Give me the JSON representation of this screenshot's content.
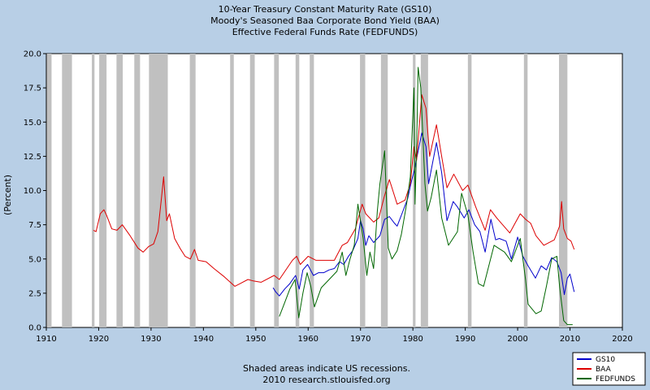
{
  "chart_data": {
    "type": "line",
    "title_lines": [
      "10-Year Treasury Constant Maturity Rate (GS10)",
      "Moody's Seasoned Baa Corporate Bond Yield (BAA)",
      "Effective Federal Funds Rate (FEDFUNDS)"
    ],
    "ylabel": "(Percent)",
    "xlabel": "",
    "xlim": [
      1910,
      2020
    ],
    "ylim": [
      0,
      20
    ],
    "x_ticks": [
      1910,
      1920,
      1930,
      1940,
      1950,
      1960,
      1970,
      1980,
      1990,
      2000,
      2010,
      2020
    ],
    "y_ticks": [
      "0.0",
      "2.5",
      "5.0",
      "7.5",
      "10.0",
      "12.5",
      "15.0",
      "17.5",
      "20.0"
    ],
    "grid": false,
    "legend_position": "bottom-right",
    "recessions": [
      [
        1910.1,
        1911.0
      ],
      [
        1913.0,
        1914.9
      ],
      [
        1918.7,
        1919.2
      ],
      [
        1920.1,
        1921.5
      ],
      [
        1923.4,
        1924.6
      ],
      [
        1926.8,
        1927.9
      ],
      [
        1929.6,
        1933.2
      ],
      [
        1937.4,
        1938.5
      ],
      [
        1945.1,
        1945.8
      ],
      [
        1948.9,
        1949.8
      ],
      [
        1953.5,
        1954.4
      ],
      [
        1957.6,
        1958.3
      ],
      [
        1960.3,
        1961.1
      ],
      [
        1969.9,
        1970.9
      ],
      [
        1973.9,
        1975.2
      ],
      [
        1980.0,
        1980.5
      ],
      [
        1981.5,
        1982.9
      ],
      [
        1990.5,
        1991.2
      ],
      [
        2001.2,
        2001.9
      ],
      [
        2007.9,
        2009.5
      ]
    ],
    "series": [
      {
        "name": "GS10",
        "color": "#0000cc",
        "x": [
          1953.3,
          1953.8,
          1954.5,
          1955.5,
          1956.5,
          1957.6,
          1958.3,
          1959.0,
          1959.9,
          1961.0,
          1962.0,
          1963.0,
          1964.0,
          1965.0,
          1966.0,
          1966.8,
          1967.7,
          1968.5,
          1969.5,
          1970.0,
          1970.5,
          1971.0,
          1971.6,
          1972.5,
          1973.7,
          1974.6,
          1975.5,
          1976.5,
          1977.0,
          1978.0,
          1979.0,
          1979.8,
          1980.3,
          1980.9,
          1981.7,
          1982.5,
          1983.0,
          1984.5,
          1985.5,
          1986.5,
          1987.7,
          1988.5,
          1989.8,
          1990.7,
          1991.8,
          1992.8,
          1993.8,
          1994.9,
          1995.8,
          1996.5,
          1997.8,
          1998.8,
          2000.0,
          2001.0,
          2002.0,
          2003.4,
          2004.5,
          2005.5,
          2006.5,
          2007.5,
          2008.3,
          2008.9,
          2009.5,
          2010.0,
          2010.8
        ],
        "y": [
          2.9,
          2.6,
          2.3,
          2.8,
          3.2,
          3.8,
          2.8,
          4.2,
          4.6,
          3.8,
          4.0,
          4.0,
          4.2,
          4.3,
          4.8,
          4.6,
          5.2,
          5.6,
          6.5,
          7.8,
          7.2,
          6.0,
          6.7,
          6.2,
          6.7,
          7.9,
          8.1,
          7.6,
          7.4,
          8.4,
          9.4,
          10.8,
          11.5,
          12.7,
          14.2,
          13.2,
          10.5,
          13.5,
          11.3,
          7.8,
          9.2,
          8.8,
          8.0,
          8.6,
          7.5,
          7.0,
          5.5,
          7.9,
          6.4,
          6.5,
          6.3,
          5.0,
          6.6,
          5.2,
          4.5,
          3.6,
          4.5,
          4.2,
          5.1,
          4.8,
          4.0,
          2.4,
          3.6,
          3.9,
          2.6
        ]
      },
      {
        "name": "BAA",
        "color": "#dd0000",
        "x": [
          1919.0,
          1919.5,
          1920.3,
          1921.0,
          1921.5,
          1922.5,
          1923.5,
          1924.5,
          1926.0,
          1927.5,
          1928.5,
          1929.5,
          1930.5,
          1931.3,
          1932.0,
          1932.4,
          1933.0,
          1933.5,
          1934.5,
          1935.5,
          1936.5,
          1937.5,
          1938.3,
          1939.0,
          1940.5,
          1942.0,
          1944.0,
          1946.0,
          1947.0,
          1948.5,
          1949.5,
          1951.0,
          1953.5,
          1954.5,
          1957.0,
          1957.8,
          1958.5,
          1960.0,
          1961.5,
          1963.5,
          1965.0,
          1966.5,
          1967.5,
          1969.0,
          1970.3,
          1971.0,
          1972.5,
          1973.5,
          1974.5,
          1975.5,
          1977.0,
          1978.5,
          1979.5,
          1980.2,
          1980.7,
          1981.7,
          1982.5,
          1983.2,
          1984.5,
          1985.5,
          1986.5,
          1987.8,
          1989.5,
          1990.5,
          1992.0,
          1993.8,
          1994.8,
          1996.0,
          1998.5,
          2000.5,
          2001.5,
          2002.5,
          2003.5,
          2005.0,
          2007.0,
          2008.0,
          2008.4,
          2008.8,
          2009.5,
          2010.2,
          2010.8
        ],
        "y": [
          7.1,
          7.0,
          8.3,
          8.6,
          8.2,
          7.2,
          7.1,
          7.5,
          6.7,
          5.8,
          5.5,
          5.9,
          6.1,
          7.0,
          9.5,
          11.0,
          7.8,
          8.3,
          6.5,
          5.8,
          5.2,
          5.0,
          5.7,
          4.9,
          4.8,
          4.3,
          3.7,
          3.0,
          3.2,
          3.5,
          3.4,
          3.3,
          3.8,
          3.5,
          4.9,
          5.2,
          4.6,
          5.2,
          4.9,
          4.9,
          4.9,
          6.0,
          6.2,
          7.2,
          9.0,
          8.3,
          7.7,
          8.0,
          9.5,
          10.8,
          9.0,
          9.3,
          10.5,
          13.2,
          12.2,
          17.0,
          16.0,
          12.5,
          14.8,
          12.5,
          10.2,
          11.2,
          10.0,
          10.4,
          8.8,
          7.1,
          8.6,
          8.0,
          6.9,
          8.3,
          7.9,
          7.6,
          6.7,
          6.0,
          6.4,
          7.4,
          9.2,
          7.2,
          6.5,
          6.3,
          5.7
        ]
      },
      {
        "name": "FEDFUNDS",
        "color": "#006600",
        "x": [
          1954.5,
          1955.5,
          1956.5,
          1957.5,
          1958.2,
          1959.0,
          1959.8,
          1960.5,
          1961.2,
          1962.5,
          1964.0,
          1965.5,
          1966.5,
          1967.2,
          1968.0,
          1968.8,
          1969.5,
          1970.5,
          1971.2,
          1971.8,
          1972.5,
          1973.2,
          1973.7,
          1974.6,
          1975.3,
          1976.0,
          1977.0,
          1977.8,
          1978.8,
          1979.5,
          1980.2,
          1980.4,
          1980.7,
          1981.0,
          1981.5,
          1982.3,
          1982.8,
          1983.5,
          1984.5,
          1985.5,
          1986.8,
          1988.5,
          1989.3,
          1990.5,
          1991.5,
          1992.5,
          1993.5,
          1994.5,
          1995.5,
          1997.5,
          1998.8,
          2000.5,
          2001.5,
          2002.0,
          2003.5,
          2004.5,
          2005.5,
          2006.5,
          2007.5,
          2008.0,
          2008.8,
          2009.5,
          2010.5
        ],
        "y": [
          0.8,
          1.8,
          2.8,
          3.5,
          0.7,
          2.5,
          4.0,
          3.0,
          1.5,
          2.9,
          3.5,
          4.1,
          5.5,
          3.8,
          5.0,
          6.0,
          9.0,
          6.5,
          3.8,
          5.5,
          4.3,
          8.5,
          10.5,
          12.9,
          5.8,
          5.0,
          5.6,
          6.8,
          9.0,
          11.0,
          17.5,
          9.0,
          13.0,
          19.0,
          17.5,
          10.5,
          8.5,
          9.5,
          11.5,
          8.0,
          6.0,
          7.0,
          9.8,
          8.2,
          5.5,
          3.2,
          3.0,
          4.5,
          6.0,
          5.5,
          4.8,
          6.5,
          3.5,
          1.7,
          1.0,
          1.2,
          3.0,
          5.0,
          5.2,
          3.0,
          0.5,
          0.2,
          0.2
        ]
      }
    ],
    "footnote_lines": [
      "Shaded areas indicate US recessions.",
      "2010 research.stlouisfed.org"
    ]
  }
}
